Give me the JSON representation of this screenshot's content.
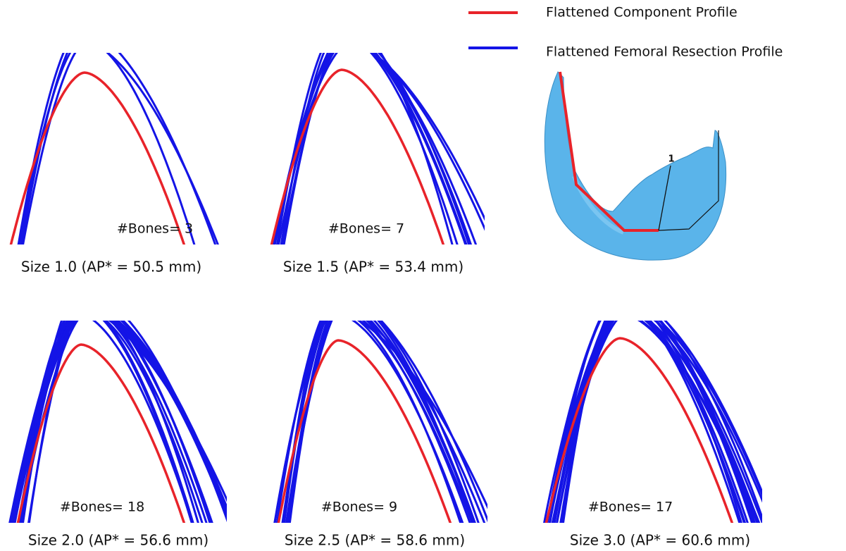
{
  "legend": {
    "items": [
      {
        "label": "Flattened Component Profile",
        "color": "#e8232a"
      },
      {
        "label": "Flattened Femoral Resection Profile",
        "color": "#1414e6"
      }
    ]
  },
  "inset": {
    "callout": "1"
  },
  "panels": [
    {
      "count_label": "#Bones= 3",
      "caption": "Size 1.0 (AP* = 50.5 mm)"
    },
    {
      "count_label": "#Bones= 7",
      "caption": "Size 1.5 (AP* = 53.4 mm)"
    },
    {
      "count_label": "#Bones= 18",
      "caption": "Size 2.0 (AP* = 56.6 mm)"
    },
    {
      "count_label": "#Bones= 9",
      "caption": "Size 2.5 (AP* = 58.6 mm)"
    },
    {
      "count_label": "#Bones= 17",
      "caption": "Size 3.0 (AP* = 60.6 mm)"
    }
  ]
}
